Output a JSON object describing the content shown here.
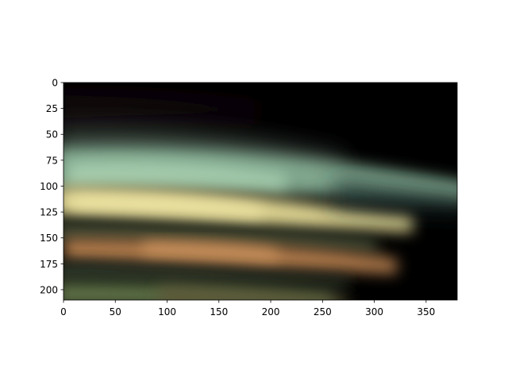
{
  "chart_data": {
    "type": "heatmap",
    "title": "",
    "xlabel": "",
    "ylabel": "",
    "xlim": [
      0,
      380
    ],
    "ylim": [
      210,
      0
    ],
    "y_inverted": true,
    "grid": false,
    "legend": "none",
    "x_ticks": [
      0,
      50,
      100,
      150,
      200,
      250,
      300,
      350
    ],
    "y_ticks": [
      0,
      25,
      50,
      75,
      100,
      125,
      150,
      175,
      200
    ],
    "x_tick_labels": [
      "0",
      "50",
      "100",
      "150",
      "200",
      "250",
      "300",
      "350"
    ],
    "y_tick_labels": [
      "0",
      "25",
      "50",
      "75",
      "100",
      "125",
      "150",
      "175",
      "200"
    ],
    "image": {
      "kind": "rgb image",
      "description_rows": [
        {
          "y": 0,
          "color_left": "#0a0606",
          "color_mid": "#050308",
          "color_right": "#000000"
        },
        {
          "y": 25,
          "color_left": "#120c14",
          "color_mid": "#0a0810",
          "color_right": "#000000"
        },
        {
          "y": 50,
          "color_left": "#1e2420",
          "color_mid": "#1a1e20",
          "color_right": "#000000"
        },
        {
          "y": 75,
          "color_left": "#5a6a55",
          "color_mid": "#4a5a50",
          "color_right": "#060808"
        },
        {
          "y": 100,
          "color_left": "#8fb59c",
          "color_mid": "#6f8f7f",
          "color_right": "#1c2a2a"
        },
        {
          "y": 125,
          "color_left": "#d8cf93",
          "color_mid": "#c8a878",
          "color_right": "#221814"
        },
        {
          "y": 150,
          "color_left": "#3f4a36",
          "color_mid": "#3a3426",
          "color_right": "#0e0c0a"
        },
        {
          "y": 165,
          "color_left": "#8a7a55",
          "color_mid": "#b57c4c",
          "color_right": "#140e0c"
        },
        {
          "y": 185,
          "color_left": "#34402c",
          "color_mid": "#3a3422",
          "color_right": "#050404"
        },
        {
          "y": 205,
          "color_left": "#566a42",
          "color_mid": "#3a3a26",
          "color_right": "#000000"
        }
      ]
    }
  }
}
